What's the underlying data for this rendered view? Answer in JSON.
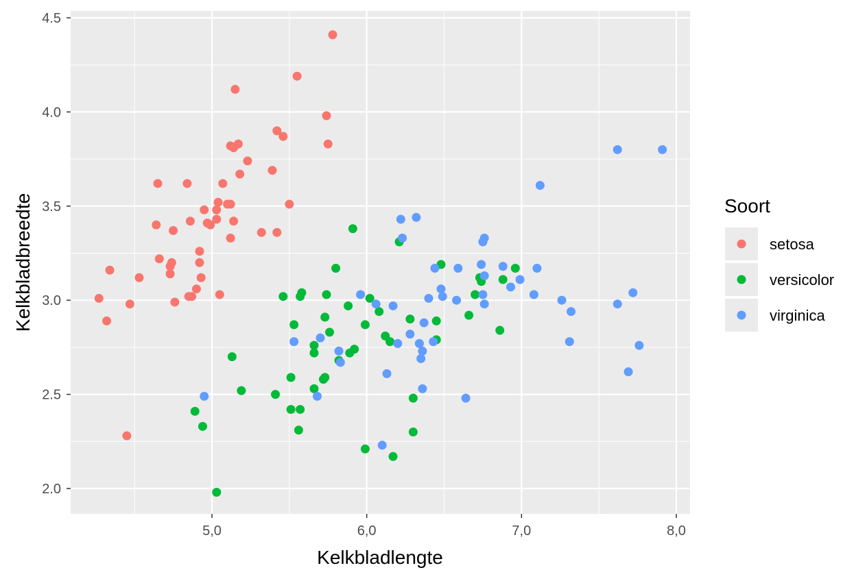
{
  "chart_data": {
    "type": "scatter",
    "xlabel": "Kelkbladlengte",
    "ylabel": "Kelkbladbreedte",
    "xlim": [
      4.2,
      8.1
    ],
    "ylim": [
      1.9,
      4.5
    ],
    "x_ticks": [
      5.0,
      6.0,
      7.0,
      8.0
    ],
    "x_tick_labels": [
      "5,0",
      "6,0",
      "7,0",
      "8,0"
    ],
    "y_ticks": [
      2.0,
      2.5,
      3.0,
      3.5,
      4.0,
      4.5
    ],
    "y_tick_labels": [
      "2.0",
      "2.5",
      "3.0",
      "3.5",
      "4.0",
      "4.5"
    ],
    "grid": true,
    "legend_title": "Soort",
    "legend_position": "right",
    "series": [
      {
        "name": "setosa",
        "color": "#F8766D",
        "points": [
          [
            5.78,
            4.41
          ],
          [
            5.55,
            4.19
          ],
          [
            5.15,
            4.12
          ],
          [
            5.74,
            3.98
          ],
          [
            5.42,
            3.9
          ],
          [
            5.46,
            3.87
          ],
          [
            5.17,
            3.83
          ],
          [
            5.12,
            3.82
          ],
          [
            5.14,
            3.81
          ],
          [
            5.75,
            3.83
          ],
          [
            5.23,
            3.74
          ],
          [
            5.39,
            3.69
          ],
          [
            5.18,
            3.67
          ],
          [
            4.65,
            3.62
          ],
          [
            4.84,
            3.62
          ],
          [
            5.07,
            3.62
          ],
          [
            5.04,
            3.52
          ],
          [
            5.1,
            3.51
          ],
          [
            5.12,
            3.51
          ],
          [
            5.5,
            3.51
          ],
          [
            5.03,
            3.48
          ],
          [
            4.95,
            3.48
          ],
          [
            4.86,
            3.42
          ],
          [
            5.03,
            3.43
          ],
          [
            5.14,
            3.42
          ],
          [
            4.97,
            3.41
          ],
          [
            4.99,
            3.4
          ],
          [
            4.64,
            3.4
          ],
          [
            4.75,
            3.37
          ],
          [
            5.32,
            3.36
          ],
          [
            5.42,
            3.36
          ],
          [
            5.12,
            3.33
          ],
          [
            4.92,
            3.26
          ],
          [
            4.66,
            3.22
          ],
          [
            4.74,
            3.2
          ],
          [
            4.92,
            3.2
          ],
          [
            4.73,
            3.18
          ],
          [
            4.34,
            3.16
          ],
          [
            4.73,
            3.14
          ],
          [
            4.53,
            3.12
          ],
          [
            4.93,
            3.12
          ],
          [
            4.9,
            3.06
          ],
          [
            4.85,
            3.02
          ],
          [
            4.87,
            3.02
          ],
          [
            5.05,
            3.03
          ],
          [
            4.27,
            3.01
          ],
          [
            4.47,
            2.98
          ],
          [
            4.76,
            2.99
          ],
          [
            4.32,
            2.89
          ],
          [
            4.45,
            2.28
          ]
        ]
      },
      {
        "name": "versicolor",
        "color": "#00BA38",
        "points": [
          [
            5.91,
            3.38
          ],
          [
            6.21,
            3.31
          ],
          [
            6.48,
            3.19
          ],
          [
            6.96,
            3.17
          ],
          [
            5.8,
            3.17
          ],
          [
            6.73,
            3.12
          ],
          [
            6.74,
            3.1
          ],
          [
            6.88,
            3.11
          ],
          [
            5.46,
            3.02
          ],
          [
            5.57,
            3.02
          ],
          [
            5.58,
            3.04
          ],
          [
            5.74,
            3.03
          ],
          [
            6.02,
            3.01
          ],
          [
            6.7,
            3.03
          ],
          [
            5.88,
            2.97
          ],
          [
            6.08,
            2.94
          ],
          [
            6.66,
            2.92
          ],
          [
            5.73,
            2.91
          ],
          [
            6.28,
            2.9
          ],
          [
            6.45,
            2.89
          ],
          [
            5.53,
            2.87
          ],
          [
            5.99,
            2.87
          ],
          [
            6.86,
            2.84
          ],
          [
            5.76,
            2.83
          ],
          [
            6.12,
            2.81
          ],
          [
            6.15,
            2.78
          ],
          [
            6.45,
            2.79
          ],
          [
            5.66,
            2.76
          ],
          [
            5.92,
            2.74
          ],
          [
            5.89,
            2.72
          ],
          [
            5.66,
            2.72
          ],
          [
            5.13,
            2.7
          ],
          [
            5.82,
            2.68
          ],
          [
            5.51,
            2.59
          ],
          [
            5.73,
            2.59
          ],
          [
            5.72,
            2.58
          ],
          [
            5.66,
            2.53
          ],
          [
            5.19,
            2.52
          ],
          [
            5.41,
            2.5
          ],
          [
            6.3,
            2.48
          ],
          [
            5.51,
            2.42
          ],
          [
            5.57,
            2.42
          ],
          [
            4.89,
            2.41
          ],
          [
            4.94,
            2.33
          ],
          [
            5.56,
            2.31
          ],
          [
            6.3,
            2.3
          ],
          [
            5.99,
            2.21
          ],
          [
            6.17,
            2.17
          ],
          [
            5.03,
            1.98
          ]
        ]
      },
      {
        "name": "virginica",
        "color": "#619CFF",
        "points": [
          [
            7.62,
            3.8
          ],
          [
            7.91,
            3.8
          ],
          [
            7.12,
            3.61
          ],
          [
            6.22,
            3.43
          ],
          [
            6.32,
            3.44
          ],
          [
            6.23,
            3.33
          ],
          [
            6.76,
            3.33
          ],
          [
            6.75,
            3.31
          ],
          [
            6.59,
            3.17
          ],
          [
            6.74,
            3.19
          ],
          [
            6.88,
            3.18
          ],
          [
            7.1,
            3.17
          ],
          [
            6.44,
            3.17
          ],
          [
            6.76,
            3.13
          ],
          [
            6.99,
            3.11
          ],
          [
            6.48,
            3.06
          ],
          [
            6.93,
            3.07
          ],
          [
            6.49,
            3.02
          ],
          [
            6.75,
            3.03
          ],
          [
            7.08,
            3.03
          ],
          [
            7.72,
            3.04
          ],
          [
            5.96,
            3.03
          ],
          [
            6.4,
            3.01
          ],
          [
            7.26,
            3.0
          ],
          [
            6.06,
            2.98
          ],
          [
            6.17,
            2.97
          ],
          [
            6.58,
            3.0
          ],
          [
            6.76,
            2.98
          ],
          [
            7.62,
            2.98
          ],
          [
            7.32,
            2.94
          ],
          [
            6.37,
            2.88
          ],
          [
            6.28,
            2.82
          ],
          [
            5.53,
            2.78
          ],
          [
            6.2,
            2.77
          ],
          [
            6.34,
            2.77
          ],
          [
            6.43,
            2.78
          ],
          [
            7.31,
            2.78
          ],
          [
            7.76,
            2.76
          ],
          [
            5.7,
            2.8
          ],
          [
            6.36,
            2.73
          ],
          [
            5.82,
            2.73
          ],
          [
            6.35,
            2.69
          ],
          [
            5.83,
            2.67
          ],
          [
            6.13,
            2.61
          ],
          [
            7.69,
            2.62
          ],
          [
            6.36,
            2.53
          ],
          [
            4.95,
            2.49
          ],
          [
            5.68,
            2.49
          ],
          [
            6.64,
            2.48
          ],
          [
            6.1,
            2.23
          ]
        ]
      }
    ]
  }
}
